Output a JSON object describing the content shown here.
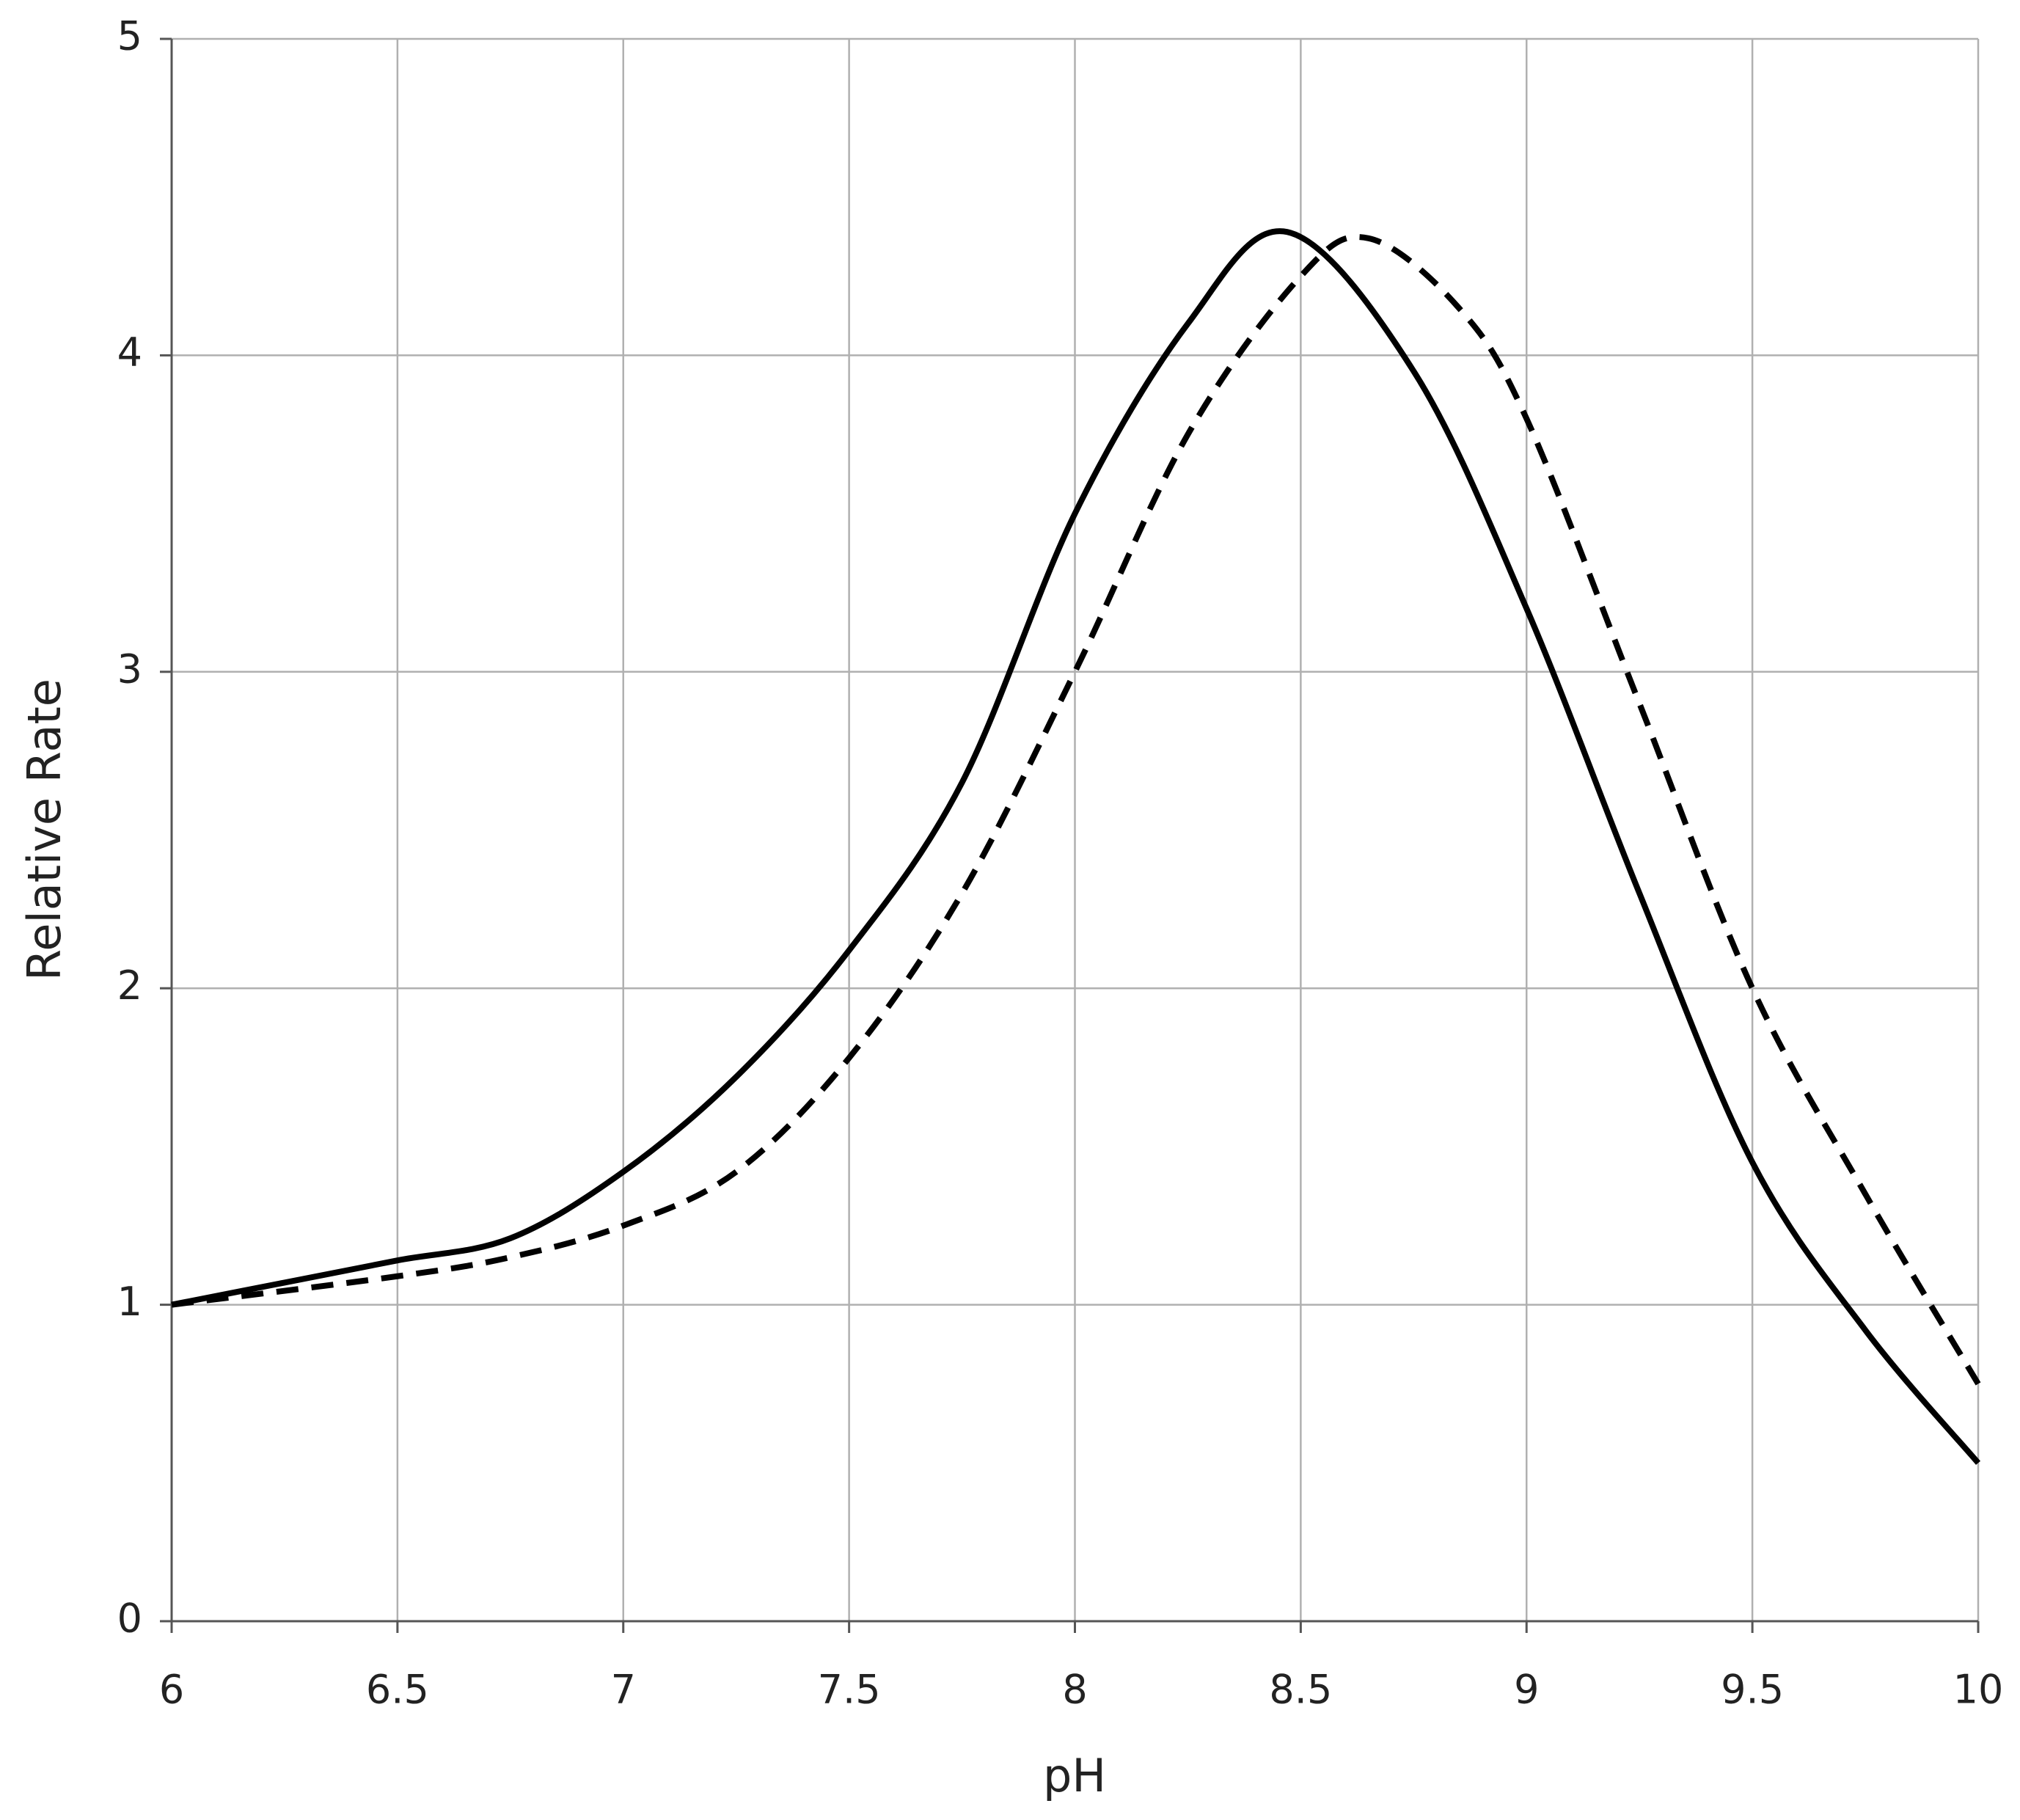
{
  "chart_data": {
    "type": "line",
    "x_label": "pH",
    "y_label": "Relative Rate",
    "series": [
      {
        "color": "#000000",
        "dash": false,
        "x": [
          6,
          6.25,
          6.5,
          6.75,
          7,
          7.25,
          7.5,
          7.75,
          8,
          8.25,
          8.47,
          8.75,
          9,
          9.25,
          9.5,
          9.75,
          10
        ],
        "values": [
          1.0,
          1.07,
          1.14,
          1.21,
          1.42,
          1.72,
          2.12,
          2.65,
          3.5,
          4.1,
          4.39,
          3.95,
          3.2,
          2.3,
          1.45,
          0.92,
          0.5
        ]
      },
      {
        "color": "#000000",
        "dash": true,
        "x": [
          6,
          6.5,
          6.75,
          7,
          7.25,
          7.5,
          7.75,
          8,
          8.25,
          8.5,
          8.65,
          8.85,
          9,
          9.25,
          9.5,
          9.75,
          10
        ],
        "values": [
          1.0,
          1.09,
          1.15,
          1.25,
          1.42,
          1.78,
          2.3,
          3.0,
          3.75,
          4.25,
          4.37,
          4.15,
          3.8,
          2.9,
          2.0,
          1.35,
          0.75
        ]
      }
    ],
    "xlim": [
      6,
      10
    ],
    "xticks": [
      6,
      6.5,
      7,
      7.5,
      8,
      8.5,
      9,
      9.5,
      10
    ],
    "ylim": [
      0,
      5
    ],
    "yticks": [
      0,
      1,
      2,
      3,
      4,
      5
    ],
    "grid": true
  }
}
